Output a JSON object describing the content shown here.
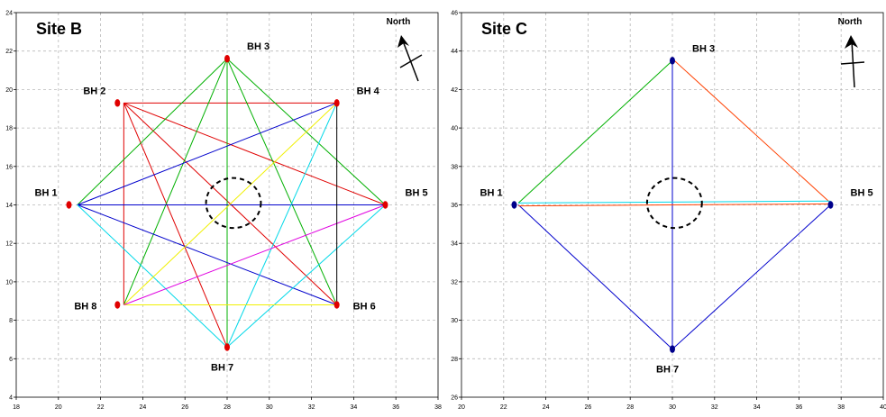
{
  "panels": [
    {
      "id": "site-b",
      "title": "Site B",
      "north_label": "North",
      "xlim": [
        18,
        38
      ],
      "ylim": [
        4,
        24
      ],
      "x_ticks": [
        18,
        20,
        22,
        24,
        26,
        28,
        30,
        32,
        34,
        36,
        38
      ],
      "y_ticks": [
        4,
        6,
        8,
        10,
        12,
        14,
        16,
        18,
        20,
        22,
        24
      ],
      "point_color": "#e00000",
      "boreholes": [
        {
          "name": "BH 1",
          "x": 20.5,
          "y": 14.0,
          "label_side": "upper-left"
        },
        {
          "name": "BH 2",
          "x": 22.8,
          "y": 19.3,
          "label_side": "upper-left"
        },
        {
          "name": "BH 3",
          "x": 28.0,
          "y": 21.6,
          "label_side": "upper-right"
        },
        {
          "name": "BH 4",
          "x": 33.2,
          "y": 19.3,
          "label_side": "upper-right"
        },
        {
          "name": "BH 5",
          "x": 35.5,
          "y": 14.0,
          "label_side": "upper-right"
        },
        {
          "name": "BH 6",
          "x": 33.2,
          "y": 8.8,
          "label_side": "right"
        },
        {
          "name": "BH 7",
          "x": 28.0,
          "y": 6.6,
          "label_side": "below"
        },
        {
          "name": "BH 8",
          "x": 22.8,
          "y": 8.8,
          "label_side": "left"
        }
      ],
      "lines": [
        {
          "from": [
            23.1,
            19.3
          ],
          "to": [
            33.2,
            19.3
          ],
          "color": "#e00000"
        },
        {
          "from": [
            23.1,
            19.3
          ],
          "to": [
            23.1,
            8.8
          ],
          "color": "#e00000"
        },
        {
          "from": [
            23.1,
            19.3
          ],
          "to": [
            35.5,
            14.0
          ],
          "color": "#e00000"
        },
        {
          "from": [
            23.1,
            19.3
          ],
          "to": [
            33.2,
            8.8
          ],
          "color": "#e00000"
        },
        {
          "from": [
            23.1,
            19.3
          ],
          "to": [
            28.0,
            6.6
          ],
          "color": "#e00000"
        },
        {
          "from": [
            28.0,
            21.6
          ],
          "to": [
            33.2,
            8.8
          ],
          "color": "#00b000"
        },
        {
          "from": [
            28.0,
            21.6
          ],
          "to": [
            23.1,
            8.8
          ],
          "color": "#00b000"
        },
        {
          "from": [
            28.0,
            21.6
          ],
          "to": [
            35.5,
            14.0
          ],
          "color": "#00b000"
        },
        {
          "from": [
            28.0,
            21.6
          ],
          "to": [
            20.9,
            14.0
          ],
          "color": "#00b000"
        },
        {
          "from": [
            28.0,
            21.6
          ],
          "to": [
            28.0,
            6.6
          ],
          "color": "#00b000"
        },
        {
          "from": [
            20.9,
            14.0
          ],
          "to": [
            35.5,
            14.0
          ],
          "color": "#0000cc"
        },
        {
          "from": [
            20.9,
            14.0
          ],
          "to": [
            33.2,
            19.3
          ],
          "color": "#0000cc"
        },
        {
          "from": [
            20.9,
            14.0
          ],
          "to": [
            33.2,
            8.8
          ],
          "color": "#0000cc"
        },
        {
          "from": [
            20.9,
            14.0
          ],
          "to": [
            28.0,
            6.6
          ],
          "color": "#00d8e8"
        },
        {
          "from": [
            33.2,
            19.3
          ],
          "to": [
            28.0,
            6.6
          ],
          "color": "#00d8e8"
        },
        {
          "from": [
            35.5,
            14.0
          ],
          "to": [
            28.0,
            6.6
          ],
          "color": "#00d8e8"
        },
        {
          "from": [
            23.1,
            8.8
          ],
          "to": [
            33.2,
            19.3
          ],
          "color": "#f0f000"
        },
        {
          "from": [
            23.1,
            8.8
          ],
          "to": [
            33.2,
            8.8
          ],
          "color": "#f0f000"
        },
        {
          "from": [
            23.1,
            8.8
          ],
          "to": [
            35.5,
            14.0
          ],
          "color": "#e000e0"
        },
        {
          "from": [
            33.2,
            19.3
          ],
          "to": [
            33.2,
            8.8
          ],
          "color": "#000000"
        }
      ],
      "center_circle": {
        "x": 28.3,
        "y": 14.1,
        "r": 1.3
      }
    },
    {
      "id": "site-c",
      "title": "Site C",
      "north_label": "North",
      "xlim": [
        20,
        40
      ],
      "ylim": [
        26,
        46
      ],
      "x_ticks": [
        20,
        22,
        24,
        26,
        28,
        30,
        32,
        34,
        36,
        38,
        40
      ],
      "y_ticks": [
        26,
        28,
        30,
        32,
        34,
        36,
        38,
        40,
        42,
        44,
        46
      ],
      "point_color": "#00008b",
      "boreholes": [
        {
          "name": "BH 1",
          "x": 22.5,
          "y": 36.0,
          "label_side": "upper-left"
        },
        {
          "name": "BH 3",
          "x": 30.0,
          "y": 43.5,
          "label_side": "upper-right"
        },
        {
          "name": "BH 5",
          "x": 37.5,
          "y": 36.0,
          "label_side": "upper-right"
        },
        {
          "name": "BH 7",
          "x": 30.0,
          "y": 28.5,
          "label_side": "below"
        }
      ],
      "lines": [
        {
          "from": [
            22.7,
            36.1
          ],
          "to": [
            30.0,
            43.5
          ],
          "color": "#00b000"
        },
        {
          "from": [
            30.0,
            43.6
          ],
          "to": [
            37.5,
            36.1
          ],
          "color": "#ff4000"
        },
        {
          "from": [
            22.7,
            36.0
          ],
          "to": [
            30.0,
            28.5
          ],
          "color": "#0000cc"
        },
        {
          "from": [
            30.0,
            28.5
          ],
          "to": [
            37.5,
            36.0
          ],
          "color": "#0000cc"
        },
        {
          "from": [
            30.0,
            43.5
          ],
          "to": [
            30.0,
            28.5
          ],
          "color": "#0000cc"
        },
        {
          "from": [
            22.7,
            36.1
          ],
          "to": [
            37.5,
            36.2
          ],
          "color": "#00d8e8"
        },
        {
          "from": [
            22.7,
            35.95
          ],
          "to": [
            37.5,
            36.05
          ],
          "color": "#ff4000"
        }
      ],
      "center_circle": {
        "x": 30.1,
        "y": 36.1,
        "r": 1.3
      }
    }
  ]
}
